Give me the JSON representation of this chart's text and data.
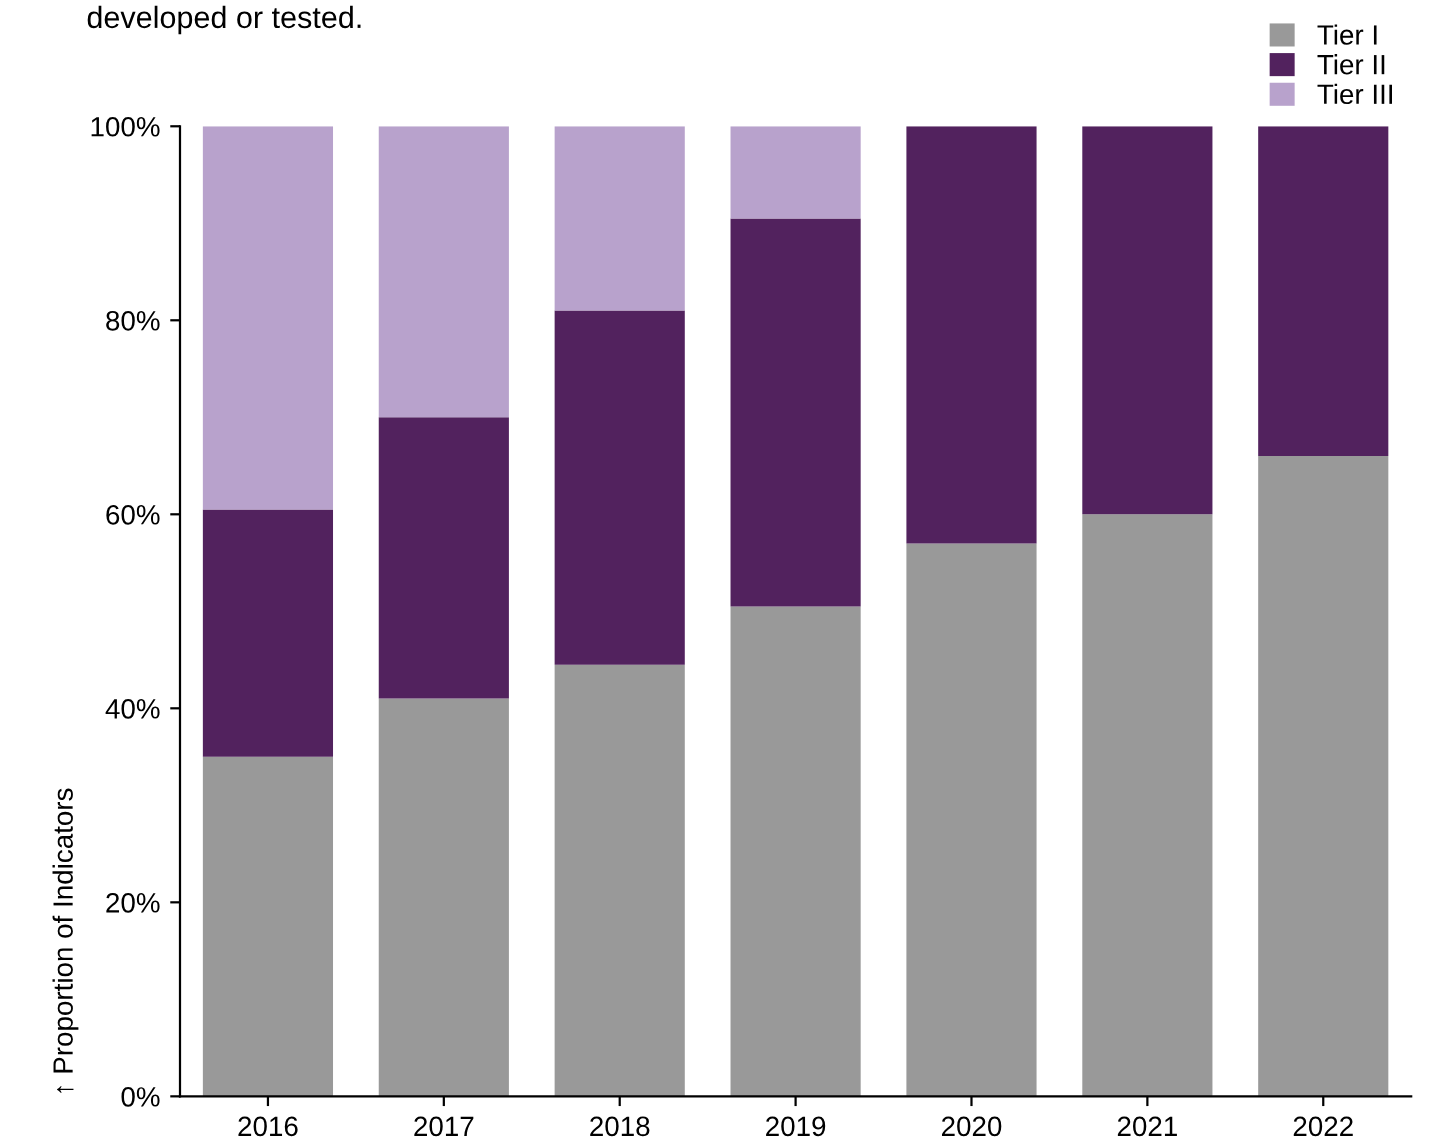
{
  "chart_data": {
    "type": "bar",
    "stacked": true,
    "annotations": [
      "developed or tested."
    ],
    "ylabel": "↑ Proportion of Indicators",
    "categories": [
      "2016",
      "2017",
      "2018",
      "2019",
      "2020",
      "2021",
      "2022"
    ],
    "series": [
      {
        "name": "Tier I",
        "color": "#999999",
        "values": [
          35,
          41,
          44.5,
          50.5,
          57,
          60,
          66
        ]
      },
      {
        "name": "Tier II",
        "color": "#52225e",
        "values": [
          25.5,
          29,
          36.5,
          40,
          43,
          40,
          34
        ]
      },
      {
        "name": "Tier III",
        "color": "#b8a2cc",
        "values": [
          39.5,
          30,
          19,
          9.5,
          0,
          0,
          0
        ]
      }
    ],
    "ylim": [
      0,
      100
    ],
    "yticks": [
      {
        "value": 0,
        "label": "0%"
      },
      {
        "value": 20,
        "label": "20%"
      },
      {
        "value": 40,
        "label": "40%"
      },
      {
        "value": 60,
        "label": "60%"
      },
      {
        "value": 80,
        "label": "80%"
      },
      {
        "value": 100,
        "label": "100%"
      }
    ],
    "grid": false,
    "legend": "top right"
  }
}
